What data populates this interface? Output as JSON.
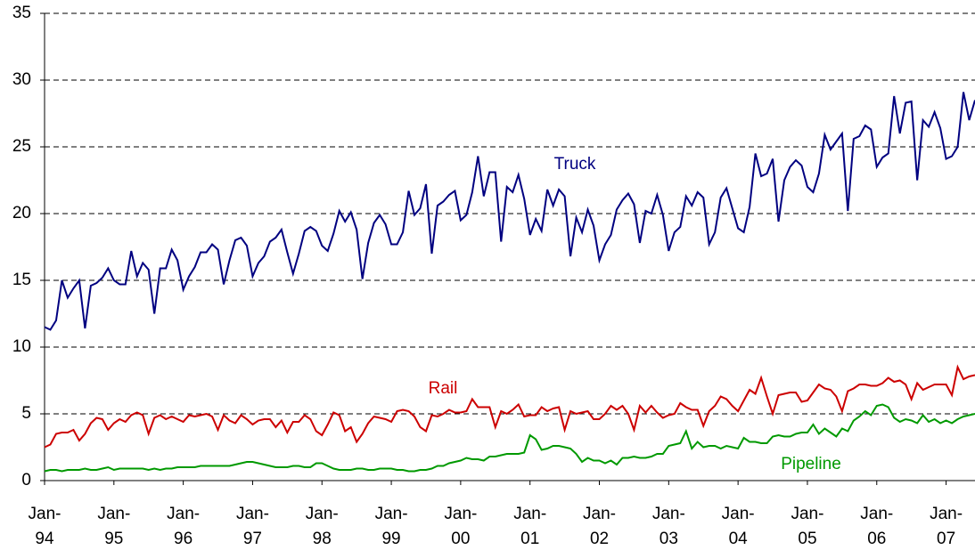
{
  "chart_data": {
    "type": "line",
    "categories": [
      "Jan-94",
      null,
      null,
      null,
      null,
      null,
      null,
      null,
      null,
      null,
      null,
      null,
      "Jan-95",
      null,
      null,
      null,
      null,
      null,
      null,
      null,
      null,
      null,
      null,
      null,
      "Jan-96",
      null,
      null,
      null,
      null,
      null,
      null,
      null,
      null,
      null,
      null,
      null,
      "Jan-97",
      null,
      null,
      null,
      null,
      null,
      null,
      null,
      null,
      null,
      null,
      null,
      "Jan-98",
      null,
      null,
      null,
      null,
      null,
      null,
      null,
      null,
      null,
      null,
      null,
      "Jan-99",
      null,
      null,
      null,
      null,
      null,
      null,
      null,
      null,
      null,
      null,
      null,
      "Jan-00",
      null,
      null,
      null,
      null,
      null,
      null,
      null,
      null,
      null,
      null,
      null,
      "Jan-01",
      null,
      null,
      null,
      null,
      null,
      null,
      null,
      null,
      null,
      null,
      null,
      "Jan-02",
      null,
      null,
      null,
      null,
      null,
      null,
      null,
      null,
      null,
      null,
      null,
      "Jan-03",
      null,
      null,
      null,
      null,
      null,
      null,
      null,
      null,
      null,
      null,
      null,
      "Jan-04",
      null,
      null,
      null,
      null,
      null,
      null,
      null,
      null,
      null,
      null,
      null,
      "Jan-05",
      null,
      null,
      null,
      null,
      null,
      null,
      null,
      null,
      null,
      null,
      null,
      "Jan-06",
      null,
      null,
      null,
      null,
      null,
      null,
      null,
      null,
      null,
      null,
      null,
      "Jan-07",
      null,
      null,
      null,
      null,
      null
    ],
    "series": [
      {
        "name": "Truck",
        "color": "#000080",
        "values": [
          11.5,
          11.3,
          12,
          15,
          13.7,
          14.4,
          15,
          11.4,
          14.6,
          14.8,
          15.2,
          15.9,
          15,
          14.7,
          14.7,
          17.2,
          15.3,
          16.3,
          15.8,
          12.5,
          15.9,
          15.9,
          17.3,
          16.5,
          14.3,
          15.3,
          16,
          17.1,
          17.1,
          17.7,
          17.3,
          14.7,
          16.5,
          18,
          18.2,
          17.6,
          15.3,
          16.3,
          16.8,
          17.9,
          18.2,
          18.8,
          17.1,
          15.5,
          17,
          18.7,
          19,
          18.7,
          17.6,
          17.2,
          18.5,
          20.2,
          19.4,
          20.1,
          18.8,
          15.1,
          17.8,
          19.3,
          19.9,
          19.2,
          17.7,
          17.7,
          18.6,
          21.7,
          19.9,
          20.4,
          22.2,
          17,
          20.6,
          20.9,
          21.4,
          21.7,
          19.5,
          19.9,
          21.6,
          24.3,
          21.3,
          23.1,
          23.1,
          17.9,
          22,
          21.6,
          22.9,
          21.1,
          18.4,
          19.6,
          18.7,
          21.8,
          20.6,
          21.8,
          21.3,
          16.8,
          19.7,
          18.6,
          20.3,
          19.1,
          16.5,
          17.7,
          18.4,
          20.3,
          21,
          21.5,
          20.7,
          17.8,
          20.2,
          20,
          21.4,
          19.9,
          17.2,
          18.6,
          19,
          21.3,
          20.6,
          21.6,
          21.2,
          17.7,
          18.6,
          21.2,
          21.9,
          20.4,
          18.9,
          18.6,
          20.5,
          24.5,
          22.8,
          23,
          24.1,
          19.4,
          22.5,
          23.5,
          24,
          23.6,
          22,
          21.6,
          23,
          25.9,
          24.8,
          25.4,
          26,
          20.2,
          25.6,
          25.8,
          26.6,
          26.3,
          23.5,
          24.2,
          24.5,
          28.8,
          26,
          28.3,
          28.4,
          22.5,
          27,
          26.5,
          27.6,
          26.4,
          24.1,
          24.3,
          25,
          29.1,
          27,
          28.5
        ]
      },
      {
        "name": "Rail",
        "color": "#cc0000",
        "values": [
          2.5,
          2.7,
          3.5,
          3.6,
          3.6,
          3.8,
          3.0,
          3.5,
          4.3,
          4.7,
          4.6,
          3.8,
          4.3,
          4.6,
          4.4,
          4.9,
          5.1,
          4.9,
          3.5,
          4.7,
          4.9,
          4.6,
          4.8,
          4.6,
          4.4,
          4.9,
          4.8,
          4.9,
          5.0,
          4.8,
          3.8,
          4.9,
          4.5,
          4.3,
          4.9,
          4.6,
          4.2,
          4.5,
          4.6,
          4.6,
          4.0,
          4.5,
          3.6,
          4.4,
          4.4,
          4.9,
          4.6,
          3.7,
          3.4,
          4.2,
          5.1,
          4.9,
          3.7,
          4.0,
          2.9,
          3.5,
          4.3,
          4.8,
          4.7,
          4.6,
          4.4,
          5.2,
          5.3,
          5.2,
          4.8,
          4.0,
          3.7,
          4.9,
          4.8,
          5.0,
          5.3,
          5.1,
          5.1,
          5.2,
          6.1,
          5.5,
          5.5,
          5.5,
          4.0,
          5.2,
          5.0,
          5.3,
          5.7,
          4.8,
          4.9,
          4.9,
          5.5,
          5.2,
          5.4,
          5.5,
          3.8,
          5.2,
          5.0,
          5.1,
          5.2,
          4.6,
          4.6,
          5.0,
          5.6,
          5.3,
          5.6,
          5.0,
          3.8,
          5.6,
          5.1,
          5.6,
          5.1,
          4.7,
          4.9,
          5.0,
          5.8,
          5.5,
          5.3,
          5.3,
          4.1,
          5.2,
          5.6,
          6.3,
          6.1,
          5.6,
          5.2,
          6.0,
          6.8,
          6.5,
          7.7,
          6.3,
          5.0,
          6.4,
          6.5,
          6.6,
          6.6,
          5.9,
          6.0,
          6.6,
          7.2,
          6.9,
          6.8,
          6.3,
          5.2,
          6.7,
          6.9,
          7.2,
          7.2,
          7.1,
          7.1,
          7.3,
          7.7,
          7.4,
          7.5,
          7.2,
          6.1,
          7.3,
          6.8,
          7.0,
          7.2,
          7.2,
          7.2,
          6.4,
          8.5,
          7.6,
          7.8,
          7.9
        ]
      },
      {
        "name": "Pipeline",
        "color": "#009900",
        "values": [
          0.7,
          0.8,
          0.8,
          0.7,
          0.8,
          0.8,
          0.8,
          0.9,
          0.8,
          0.8,
          0.9,
          1.0,
          0.8,
          0.9,
          0.9,
          0.9,
          0.9,
          0.9,
          0.8,
          0.9,
          0.8,
          0.9,
          0.9,
          1.0,
          1.0,
          1.0,
          1.0,
          1.1,
          1.1,
          1.1,
          1.1,
          1.1,
          1.1,
          1.2,
          1.3,
          1.4,
          1.4,
          1.3,
          1.2,
          1.1,
          1.0,
          1.0,
          1.0,
          1.1,
          1.1,
          1.0,
          1.0,
          1.3,
          1.3,
          1.1,
          0.9,
          0.8,
          0.8,
          0.8,
          0.9,
          0.9,
          0.8,
          0.8,
          0.9,
          0.9,
          0.9,
          0.8,
          0.8,
          0.7,
          0.7,
          0.8,
          0.8,
          0.9,
          1.1,
          1.1,
          1.3,
          1.4,
          1.5,
          1.7,
          1.6,
          1.6,
          1.5,
          1.8,
          1.8,
          1.9,
          2.0,
          2.0,
          2.0,
          2.1,
          3.4,
          3.1,
          2.3,
          2.4,
          2.6,
          2.6,
          2.5,
          2.4,
          2.0,
          1.4,
          1.7,
          1.5,
          1.5,
          1.3,
          1.5,
          1.2,
          1.7,
          1.7,
          1.8,
          1.7,
          1.7,
          1.8,
          2.0,
          2.0,
          2.6,
          2.7,
          2.8,
          3.7,
          2.4,
          2.9,
          2.5,
          2.6,
          2.6,
          2.4,
          2.6,
          2.5,
          2.4,
          3.2,
          2.9,
          2.9,
          2.8,
          2.8,
          3.3,
          3.4,
          3.3,
          3.3,
          3.5,
          3.6,
          3.6,
          4.2,
          3.5,
          3.9,
          3.6,
          3.3,
          3.9,
          3.7,
          4.5,
          4.8,
          5.2,
          4.9,
          5.6,
          5.7,
          5.5,
          4.7,
          4.4,
          4.6,
          4.5,
          4.3,
          4.9,
          4.4,
          4.6,
          4.3,
          4.5,
          4.3,
          4.6,
          4.8,
          4.9,
          5.0
        ]
      }
    ],
    "ylim": [
      0,
      35
    ],
    "yticks": [
      0,
      5,
      10,
      15,
      20,
      25,
      30,
      35
    ],
    "grid": true
  }
}
